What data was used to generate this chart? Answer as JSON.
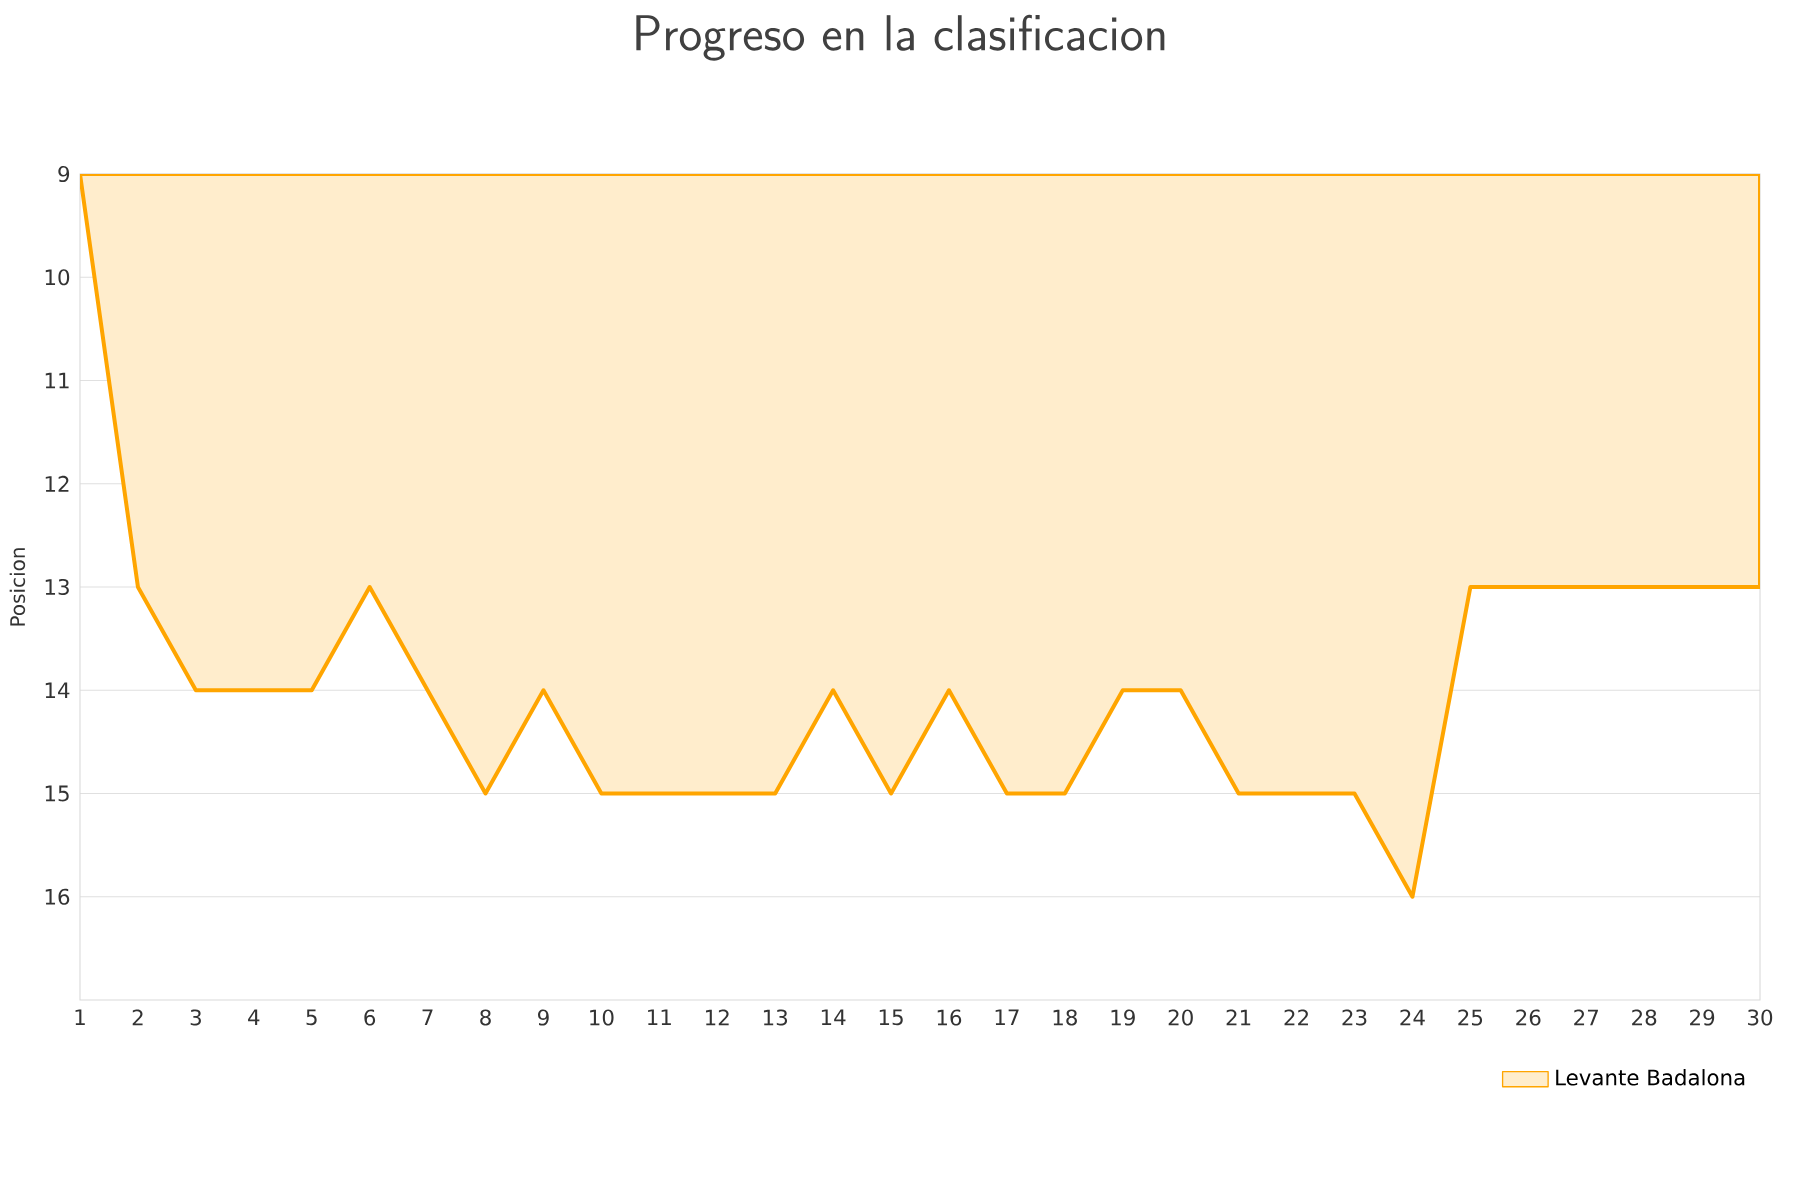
{
  "chart_data": {
    "type": "area",
    "title": "Progreso en la clasificacion",
    "ylabel": "Posicion",
    "x": [
      1,
      2,
      3,
      4,
      5,
      6,
      7,
      8,
      9,
      10,
      11,
      12,
      13,
      14,
      15,
      16,
      17,
      18,
      19,
      20,
      21,
      22,
      23,
      24,
      25,
      26,
      27,
      28,
      29,
      30
    ],
    "series": [
      {
        "name": "Levante Badalona",
        "color": "#ffa500",
        "values": [
          9,
          13,
          14,
          14,
          14,
          13,
          14,
          15,
          14,
          15,
          15,
          15,
          15,
          14,
          15,
          14,
          15,
          15,
          14,
          14,
          15,
          15,
          15,
          16,
          13,
          13,
          13,
          13,
          13,
          13
        ]
      }
    ],
    "xlim": [
      1,
      30
    ],
    "xticks": [
      1,
      2,
      3,
      4,
      5,
      6,
      7,
      8,
      9,
      10,
      11,
      12,
      13,
      14,
      15,
      16,
      17,
      18,
      19,
      20,
      21,
      22,
      23,
      24,
      25,
      26,
      27,
      28,
      29,
      30
    ],
    "ylim": [
      17,
      9
    ],
    "yticks": [
      9,
      10,
      11,
      12,
      13,
      14,
      15,
      16
    ],
    "grid": "y",
    "legend": "bottom right",
    "marker": "none",
    "line_style": "solid"
  }
}
